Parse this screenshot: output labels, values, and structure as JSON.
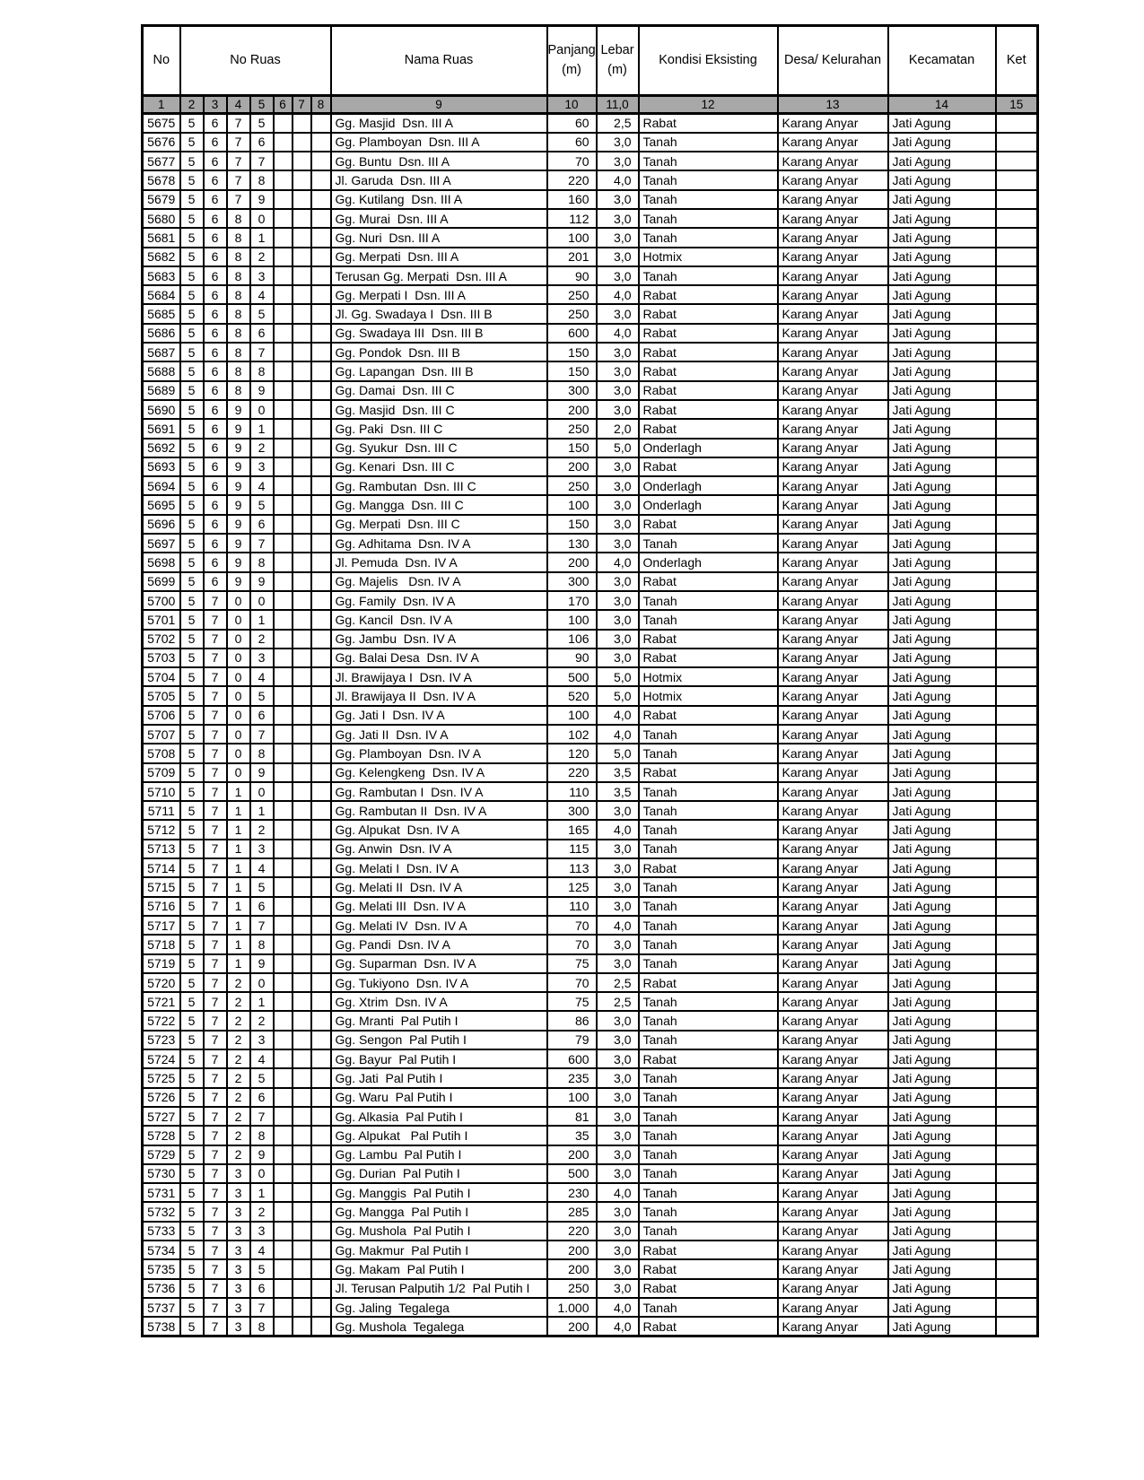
{
  "colors": {
    "band_bg": "#a8a8a8",
    "border": "#000000",
    "page_bg": "#ffffff"
  },
  "table": {
    "header": {
      "no": "No",
      "no_ruas": "No Ruas",
      "nama_ruas": "Nama Ruas",
      "panjang": "Panjang\n(m)",
      "lebar": "Lebar\n(m)",
      "kondisi": "Kondisi Eksisting",
      "desa": "Desa/ Kelurahan",
      "kecamatan": "Kecamatan",
      "ket": "Ket"
    },
    "number_row": [
      "1",
      "2",
      "3",
      "4",
      "5",
      "6",
      "7",
      "8",
      "9",
      "10",
      "11,0",
      "12",
      "13",
      "14",
      "15"
    ],
    "rows": [
      [
        "5675",
        "5",
        "6",
        "7",
        "5",
        "",
        "",
        "",
        "Gg. Masjid  Dsn. III A",
        "60",
        "2,5",
        "Rabat",
        "Karang Anyar",
        "Jati Agung",
        ""
      ],
      [
        "5676",
        "5",
        "6",
        "7",
        "6",
        "",
        "",
        "",
        "Gg. Plamboyan  Dsn. III A",
        "60",
        "3,0",
        "Tanah",
        "Karang Anyar",
        "Jati Agung",
        ""
      ],
      [
        "5677",
        "5",
        "6",
        "7",
        "7",
        "",
        "",
        "",
        "Gg. Buntu  Dsn. III A",
        "70",
        "3,0",
        "Tanah",
        "Karang Anyar",
        "Jati Agung",
        ""
      ],
      [
        "5678",
        "5",
        "6",
        "7",
        "8",
        "",
        "",
        "",
        "Jl. Garuda  Dsn. III A",
        "220",
        "4,0",
        "Tanah",
        "Karang Anyar",
        "Jati Agung",
        ""
      ],
      [
        "5679",
        "5",
        "6",
        "7",
        "9",
        "",
        "",
        "",
        "Gg. Kutilang  Dsn. III A",
        "160",
        "3,0",
        "Tanah",
        "Karang Anyar",
        "Jati Agung",
        ""
      ],
      [
        "5680",
        "5",
        "6",
        "8",
        "0",
        "",
        "",
        "",
        "Gg. Murai  Dsn. III A",
        "112",
        "3,0",
        "Tanah",
        "Karang Anyar",
        "Jati Agung",
        ""
      ],
      [
        "5681",
        "5",
        "6",
        "8",
        "1",
        "",
        "",
        "",
        "Gg. Nuri  Dsn. III A",
        "100",
        "3,0",
        "Tanah",
        "Karang Anyar",
        "Jati Agung",
        ""
      ],
      [
        "5682",
        "5",
        "6",
        "8",
        "2",
        "",
        "",
        "",
        "Gg. Merpati  Dsn. III A",
        "201",
        "3,0",
        "Hotmix",
        "Karang Anyar",
        "Jati Agung",
        ""
      ],
      [
        "5683",
        "5",
        "6",
        "8",
        "3",
        "",
        "",
        "",
        "Terusan Gg. Merpati  Dsn. III A",
        "90",
        "3,0",
        "Tanah",
        "Karang Anyar",
        "Jati Agung",
        ""
      ],
      [
        "5684",
        "5",
        "6",
        "8",
        "4",
        "",
        "",
        "",
        "Gg. Merpati I  Dsn. III A",
        "250",
        "4,0",
        "Rabat",
        "Karang Anyar",
        "Jati Agung",
        ""
      ],
      [
        "5685",
        "5",
        "6",
        "8",
        "5",
        "",
        "",
        "",
        "Jl. Gg. Swadaya I  Dsn. III B",
        "250",
        "3,0",
        "Rabat",
        "Karang Anyar",
        "Jati Agung",
        ""
      ],
      [
        "5686",
        "5",
        "6",
        "8",
        "6",
        "",
        "",
        "",
        "Gg. Swadaya III  Dsn. III B",
        "600",
        "4,0",
        "Rabat",
        "Karang Anyar",
        "Jati Agung",
        ""
      ],
      [
        "5687",
        "5",
        "6",
        "8",
        "7",
        "",
        "",
        "",
        "Gg. Pondok  Dsn. III B",
        "150",
        "3,0",
        "Rabat",
        "Karang Anyar",
        "Jati Agung",
        ""
      ],
      [
        "5688",
        "5",
        "6",
        "8",
        "8",
        "",
        "",
        "",
        "Gg. Lapangan  Dsn. III B",
        "150",
        "3,0",
        "Rabat",
        "Karang Anyar",
        "Jati Agung",
        ""
      ],
      [
        "5689",
        "5",
        "6",
        "8",
        "9",
        "",
        "",
        "",
        "Gg. Damai  Dsn. III C",
        "300",
        "3,0",
        "Rabat",
        "Karang Anyar",
        "Jati Agung",
        ""
      ],
      [
        "5690",
        "5",
        "6",
        "9",
        "0",
        "",
        "",
        "",
        "Gg. Masjid  Dsn. III C",
        "200",
        "3,0",
        "Rabat",
        "Karang Anyar",
        "Jati Agung",
        ""
      ],
      [
        "5691",
        "5",
        "6",
        "9",
        "1",
        "",
        "",
        "",
        "Gg. Paki  Dsn. III C",
        "250",
        "2,0",
        "Rabat",
        "Karang Anyar",
        "Jati Agung",
        ""
      ],
      [
        "5692",
        "5",
        "6",
        "9",
        "2",
        "",
        "",
        "",
        "Gg. Syukur  Dsn. III C",
        "150",
        "5,0",
        "Onderlagh",
        "Karang Anyar",
        "Jati Agung",
        ""
      ],
      [
        "5693",
        "5",
        "6",
        "9",
        "3",
        "",
        "",
        "",
        "Gg. Kenari  Dsn. III C",
        "200",
        "3,0",
        "Rabat",
        "Karang Anyar",
        "Jati Agung",
        ""
      ],
      [
        "5694",
        "5",
        "6",
        "9",
        "4",
        "",
        "",
        "",
        "Gg. Rambutan  Dsn. III C",
        "250",
        "3,0",
        "Onderlagh",
        "Karang Anyar",
        "Jati Agung",
        ""
      ],
      [
        "5695",
        "5",
        "6",
        "9",
        "5",
        "",
        "",
        "",
        "Gg. Mangga  Dsn. III C",
        "100",
        "3,0",
        "Onderlagh",
        "Karang Anyar",
        "Jati Agung",
        ""
      ],
      [
        "5696",
        "5",
        "6",
        "9",
        "6",
        "",
        "",
        "",
        "Gg. Merpati  Dsn. III C",
        "150",
        "3,0",
        "Rabat",
        "Karang Anyar",
        "Jati Agung",
        ""
      ],
      [
        "5697",
        "5",
        "6",
        "9",
        "7",
        "",
        "",
        "",
        "Gg. Adhitama  Dsn. IV A",
        "130",
        "3,0",
        "Tanah",
        "Karang Anyar",
        "Jati Agung",
        ""
      ],
      [
        "5698",
        "5",
        "6",
        "9",
        "8",
        "",
        "",
        "",
        "Jl. Pemuda  Dsn. IV A",
        "200",
        "4,0",
        "Onderlagh",
        "Karang Anyar",
        "Jati Agung",
        ""
      ],
      [
        "5699",
        "5",
        "6",
        "9",
        "9",
        "",
        "",
        "",
        "Gg. Majelis   Dsn. IV A",
        "300",
        "3,0",
        "Rabat",
        "Karang Anyar",
        "Jati Agung",
        ""
      ],
      [
        "5700",
        "5",
        "7",
        "0",
        "0",
        "",
        "",
        "",
        "Gg. Family  Dsn. IV A",
        "170",
        "3,0",
        "Tanah",
        "Karang Anyar",
        "Jati Agung",
        ""
      ],
      [
        "5701",
        "5",
        "7",
        "0",
        "1",
        "",
        "",
        "",
        "Gg. Kancil  Dsn. IV A",
        "100",
        "3,0",
        "Tanah",
        "Karang Anyar",
        "Jati Agung",
        ""
      ],
      [
        "5702",
        "5",
        "7",
        "0",
        "2",
        "",
        "",
        "",
        "Gg. Jambu  Dsn. IV A",
        "106",
        "3,0",
        "Rabat",
        "Karang Anyar",
        "Jati Agung",
        ""
      ],
      [
        "5703",
        "5",
        "7",
        "0",
        "3",
        "",
        "",
        "",
        "Gg. Balai Desa  Dsn. IV A",
        "90",
        "3,0",
        "Rabat",
        "Karang Anyar",
        "Jati Agung",
        ""
      ],
      [
        "5704",
        "5",
        "7",
        "0",
        "4",
        "",
        "",
        "",
        "Jl. Brawijaya I  Dsn. IV A",
        "500",
        "5,0",
        "Hotmix",
        "Karang Anyar",
        "Jati Agung",
        ""
      ],
      [
        "5705",
        "5",
        "7",
        "0",
        "5",
        "",
        "",
        "",
        "Jl. Brawijaya II  Dsn. IV A",
        "520",
        "5,0",
        "Hotmix",
        "Karang Anyar",
        "Jati Agung",
        ""
      ],
      [
        "5706",
        "5",
        "7",
        "0",
        "6",
        "",
        "",
        "",
        "Gg. Jati I  Dsn. IV A",
        "100",
        "4,0",
        "Rabat",
        "Karang Anyar",
        "Jati Agung",
        ""
      ],
      [
        "5707",
        "5",
        "7",
        "0",
        "7",
        "",
        "",
        "",
        "Gg. Jati II  Dsn. IV A",
        "102",
        "4,0",
        "Tanah",
        "Karang Anyar",
        "Jati Agung",
        ""
      ],
      [
        "5708",
        "5",
        "7",
        "0",
        "8",
        "",
        "",
        "",
        "Gg. Plamboyan  Dsn. IV A",
        "120",
        "5,0",
        "Tanah",
        "Karang Anyar",
        "Jati Agung",
        ""
      ],
      [
        "5709",
        "5",
        "7",
        "0",
        "9",
        "",
        "",
        "",
        "Gg. Kelengkeng  Dsn. IV A",
        "220",
        "3,5",
        "Rabat",
        "Karang Anyar",
        "Jati Agung",
        ""
      ],
      [
        "5710",
        "5",
        "7",
        "1",
        "0",
        "",
        "",
        "",
        "Gg. Rambutan I  Dsn. IV A",
        "110",
        "3,5",
        "Tanah",
        "Karang Anyar",
        "Jati Agung",
        ""
      ],
      [
        "5711",
        "5",
        "7",
        "1",
        "1",
        "",
        "",
        "",
        "Gg. Rambutan II  Dsn. IV A",
        "300",
        "3,0",
        "Tanah",
        "Karang Anyar",
        "Jati Agung",
        ""
      ],
      [
        "5712",
        "5",
        "7",
        "1",
        "2",
        "",
        "",
        "",
        "Gg. Alpukat  Dsn. IV A",
        "165",
        "4,0",
        "Tanah",
        "Karang Anyar",
        "Jati Agung",
        ""
      ],
      [
        "5713",
        "5",
        "7",
        "1",
        "3",
        "",
        "",
        "",
        "Gg. Anwin  Dsn. IV A",
        "115",
        "3,0",
        "Tanah",
        "Karang Anyar",
        "Jati Agung",
        ""
      ],
      [
        "5714",
        "5",
        "7",
        "1",
        "4",
        "",
        "",
        "",
        "Gg. Melati I  Dsn. IV A",
        "113",
        "3,0",
        "Rabat",
        "Karang Anyar",
        "Jati Agung",
        ""
      ],
      [
        "5715",
        "5",
        "7",
        "1",
        "5",
        "",
        "",
        "",
        "Gg. Melati II  Dsn. IV A",
        "125",
        "3,0",
        "Tanah",
        "Karang Anyar",
        "Jati Agung",
        ""
      ],
      [
        "5716",
        "5",
        "7",
        "1",
        "6",
        "",
        "",
        "",
        "Gg. Melati III  Dsn. IV A",
        "110",
        "3,0",
        "Tanah",
        "Karang Anyar",
        "Jati Agung",
        ""
      ],
      [
        "5717",
        "5",
        "7",
        "1",
        "7",
        "",
        "",
        "",
        "Gg. Melati IV  Dsn. IV A",
        "70",
        "4,0",
        "Tanah",
        "Karang Anyar",
        "Jati Agung",
        ""
      ],
      [
        "5718",
        "5",
        "7",
        "1",
        "8",
        "",
        "",
        "",
        "Gg. Pandi  Dsn. IV A",
        "70",
        "3,0",
        "Tanah",
        "Karang Anyar",
        "Jati Agung",
        ""
      ],
      [
        "5719",
        "5",
        "7",
        "1",
        "9",
        "",
        "",
        "",
        "Gg. Suparman  Dsn. IV A",
        "75",
        "3,0",
        "Tanah",
        "Karang Anyar",
        "Jati Agung",
        ""
      ],
      [
        "5720",
        "5",
        "7",
        "2",
        "0",
        "",
        "",
        "",
        "Gg. Tukiyono  Dsn. IV A",
        "70",
        "2,5",
        "Rabat",
        "Karang Anyar",
        "Jati Agung",
        ""
      ],
      [
        "5721",
        "5",
        "7",
        "2",
        "1",
        "",
        "",
        "",
        "Gg. Xtrim  Dsn. IV A",
        "75",
        "2,5",
        "Tanah",
        "Karang Anyar",
        "Jati Agung",
        ""
      ],
      [
        "5722",
        "5",
        "7",
        "2",
        "2",
        "",
        "",
        "",
        "Gg. Mranti  Pal Putih I",
        "86",
        "3,0",
        "Tanah",
        "Karang Anyar",
        "Jati Agung",
        ""
      ],
      [
        "5723",
        "5",
        "7",
        "2",
        "3",
        "",
        "",
        "",
        "Gg. Sengon  Pal Putih I",
        "79",
        "3,0",
        "Tanah",
        "Karang Anyar",
        "Jati Agung",
        ""
      ],
      [
        "5724",
        "5",
        "7",
        "2",
        "4",
        "",
        "",
        "",
        "Gg. Bayur  Pal Putih I",
        "600",
        "3,0",
        "Rabat",
        "Karang Anyar",
        "Jati Agung",
        ""
      ],
      [
        "5725",
        "5",
        "7",
        "2",
        "5",
        "",
        "",
        "",
        "Gg. Jati  Pal Putih I",
        "235",
        "3,0",
        "Tanah",
        "Karang Anyar",
        "Jati Agung",
        ""
      ],
      [
        "5726",
        "5",
        "7",
        "2",
        "6",
        "",
        "",
        "",
        "Gg. Waru  Pal Putih I",
        "100",
        "3,0",
        "Tanah",
        "Karang Anyar",
        "Jati Agung",
        ""
      ],
      [
        "5727",
        "5",
        "7",
        "2",
        "7",
        "",
        "",
        "",
        "Gg. Alkasia  Pal Putih I",
        "81",
        "3,0",
        "Tanah",
        "Karang Anyar",
        "Jati Agung",
        ""
      ],
      [
        "5728",
        "5",
        "7",
        "2",
        "8",
        "",
        "",
        "",
        "Gg. Alpukat   Pal Putih I",
        "35",
        "3,0",
        "Tanah",
        "Karang Anyar",
        "Jati Agung",
        ""
      ],
      [
        "5729",
        "5",
        "7",
        "2",
        "9",
        "",
        "",
        "",
        "Gg. Lambu  Pal Putih I",
        "200",
        "3,0",
        "Tanah",
        "Karang Anyar",
        "Jati Agung",
        ""
      ],
      [
        "5730",
        "5",
        "7",
        "3",
        "0",
        "",
        "",
        "",
        "Gg. Durian  Pal Putih I",
        "500",
        "3,0",
        "Tanah",
        "Karang Anyar",
        "Jati Agung",
        ""
      ],
      [
        "5731",
        "5",
        "7",
        "3",
        "1",
        "",
        "",
        "",
        "Gg. Manggis  Pal Putih I",
        "230",
        "4,0",
        "Tanah",
        "Karang Anyar",
        "Jati Agung",
        ""
      ],
      [
        "5732",
        "5",
        "7",
        "3",
        "2",
        "",
        "",
        "",
        "Gg. Mangga  Pal Putih I",
        "285",
        "3,0",
        "Tanah",
        "Karang Anyar",
        "Jati Agung",
        ""
      ],
      [
        "5733",
        "5",
        "7",
        "3",
        "3",
        "",
        "",
        "",
        "Gg. Mushola  Pal Putih I",
        "220",
        "3,0",
        "Tanah",
        "Karang Anyar",
        "Jati Agung",
        ""
      ],
      [
        "5734",
        "5",
        "7",
        "3",
        "4",
        "",
        "",
        "",
        "Gg. Makmur  Pal Putih I",
        "200",
        "3,0",
        "Rabat",
        "Karang Anyar",
        "Jati Agung",
        ""
      ],
      [
        "5735",
        "5",
        "7",
        "3",
        "5",
        "",
        "",
        "",
        "Gg. Makam  Pal Putih I",
        "200",
        "3,0",
        "Rabat",
        "Karang Anyar",
        "Jati Agung",
        ""
      ],
      [
        "5736",
        "5",
        "7",
        "3",
        "6",
        "",
        "",
        "",
        "Jl. Terusan Palputih 1/2  Pal Putih I",
        "250",
        "3,0",
        "Rabat",
        "Karang Anyar",
        "Jati Agung",
        ""
      ],
      [
        "5737",
        "5",
        "7",
        "3",
        "7",
        "",
        "",
        "",
        "Gg. Jaling  Tegalega",
        "1.000",
        "4,0",
        "Tanah",
        "Karang Anyar",
        "Jati Agung",
        ""
      ],
      [
        "5738",
        "5",
        "7",
        "3",
        "8",
        "",
        "",
        "",
        "Gg. Mushola  Tegalega",
        "200",
        "4,0",
        "Rabat",
        "Karang Anyar",
        "Jati Agung",
        ""
      ]
    ]
  }
}
